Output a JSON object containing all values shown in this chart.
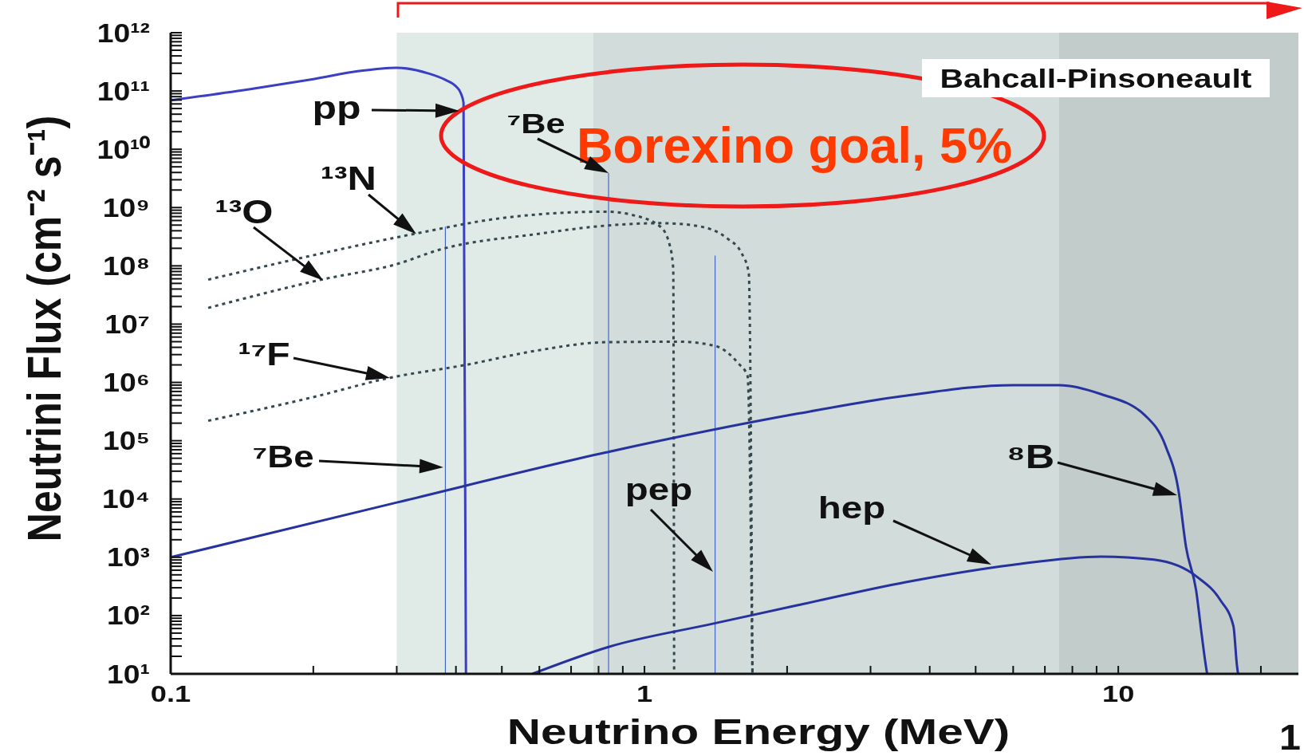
{
  "chart_data": {
    "type": "line",
    "xlabel": "Neutrino Energy (MeV)",
    "ylabel": "Neutrini Flux (cm⁻² s⁻¹)",
    "log": "xy",
    "xlim": [
      0.1,
      24
    ],
    "ylim": [
      10,
      1000000000000.0
    ],
    "xticks": [
      0.1,
      {
        "value": 0.2,
        "label": null
      },
      {
        "value": 0.3,
        "label": null
      },
      {
        "value": 0.4,
        "label": null
      },
      {
        "value": 0.5,
        "label": null
      },
      {
        "value": 0.6,
        "label": null
      },
      {
        "value": 0.7,
        "label": null
      },
      {
        "value": 0.8,
        "label": null
      },
      {
        "value": 0.9,
        "label": null
      },
      1,
      {
        "value": 2,
        "label": null
      },
      {
        "value": 3,
        "label": null
      },
      {
        "value": 4,
        "label": null
      },
      {
        "value": 5,
        "label": null
      },
      {
        "value": 6,
        "label": null
      },
      {
        "value": 7,
        "label": null
      },
      {
        "value": 8,
        "label": null
      },
      {
        "value": 9,
        "label": null
      },
      10,
      {
        "value": 20,
        "label": null
      }
    ],
    "yticks": [
      {
        "value": 10,
        "label": "10¹"
      },
      {
        "value": 20.0,
        "label": null
      },
      {
        "value": 30.0,
        "label": null
      },
      {
        "value": 40.0,
        "label": null
      },
      {
        "value": 50.0,
        "label": null
      },
      {
        "value": 60.0,
        "label": null
      },
      {
        "value": 70.0,
        "label": null
      },
      {
        "value": 80.0,
        "label": null
      },
      {
        "value": 90.0,
        "label": null
      },
      {
        "value": 100.0,
        "label": "10²"
      },
      {
        "value": 200.0,
        "label": null
      },
      {
        "value": 300.0,
        "label": null
      },
      {
        "value": 400.0,
        "label": null
      },
      {
        "value": 500.0,
        "label": null
      },
      {
        "value": 600.0,
        "label": null
      },
      {
        "value": 700.0,
        "label": null
      },
      {
        "value": 800.0,
        "label": null
      },
      {
        "value": 900.0,
        "label": null
      },
      {
        "value": 1000.0,
        "label": "10³"
      },
      {
        "value": 2000.0,
        "label": null
      },
      {
        "value": 3000.0,
        "label": null
      },
      {
        "value": 4000.0,
        "label": null
      },
      {
        "value": 5000.0,
        "label": null
      },
      {
        "value": 6000.0,
        "label": null
      },
      {
        "value": 7000.0,
        "label": null
      },
      {
        "value": 8000.0,
        "label": null
      },
      {
        "value": 9000.0,
        "label": null
      },
      {
        "value": 10000.0,
        "label": "10⁴"
      },
      {
        "value": 20000.0,
        "label": null
      },
      {
        "value": 30000.0,
        "label": null
      },
      {
        "value": 40000.0,
        "label": null
      },
      {
        "value": 50000.0,
        "label": null
      },
      {
        "value": 60000.0,
        "label": null
      },
      {
        "value": 70000.0,
        "label": null
      },
      {
        "value": 80000.0,
        "label": null
      },
      {
        "value": 90000.0,
        "label": null
      },
      {
        "value": 100000.0,
        "label": "10⁵"
      },
      {
        "value": 200000.0,
        "label": null
      },
      {
        "value": 300000.0,
        "label": null
      },
      {
        "value": 400000.0,
        "label": null
      },
      {
        "value": 500000.0,
        "label": null
      },
      {
        "value": 600000.0,
        "label": null
      },
      {
        "value": 700000.0,
        "label": null
      },
      {
        "value": 800000.0,
        "label": null
      },
      {
        "value": 900000.0,
        "label": null
      },
      {
        "value": 1000000.0,
        "label": "10⁶"
      },
      {
        "value": 2000000.0,
        "label": null
      },
      {
        "value": 3000000.0,
        "label": null
      },
      {
        "value": 4000000.0,
        "label": null
      },
      {
        "value": 5000000.0,
        "label": null
      },
      {
        "value": 6000000.0,
        "label": null
      },
      {
        "value": 7000000.0,
        "label": null
      },
      {
        "value": 8000000.0,
        "label": null
      },
      {
        "value": 9000000.0,
        "label": null
      },
      {
        "value": 10000000.0,
        "label": "10⁷"
      },
      {
        "value": 20000000.0,
        "label": null
      },
      {
        "value": 30000000.0,
        "label": null
      },
      {
        "value": 40000000.0,
        "label": null
      },
      {
        "value": 50000000.0,
        "label": null
      },
      {
        "value": 60000000.0,
        "label": null
      },
      {
        "value": 70000000.0,
        "label": null
      },
      {
        "value": 80000000.0,
        "label": null
      },
      {
        "value": 90000000.0,
        "label": null
      },
      {
        "value": 100000000.0,
        "label": "10⁸"
      },
      {
        "value": 200000000.0,
        "label": null
      },
      {
        "value": 300000000.0,
        "label": null
      },
      {
        "value": 400000000.0,
        "label": null
      },
      {
        "value": 500000000.0,
        "label": null
      },
      {
        "value": 600000000.0,
        "label": null
      },
      {
        "value": 700000000.0,
        "label": null
      },
      {
        "value": 800000000.0,
        "label": null
      },
      {
        "value": 900000000.0,
        "label": null
      },
      {
        "value": 1000000000.0,
        "label": "10⁹"
      },
      {
        "value": 2000000000.0,
        "label": null
      },
      {
        "value": 3000000000.0,
        "label": null
      },
      {
        "value": 4000000000.0,
        "label": null
      },
      {
        "value": 5000000000.0,
        "label": null
      },
      {
        "value": 6000000000.0,
        "label": null
      },
      {
        "value": 7000000000.0,
        "label": null
      },
      {
        "value": 8000000000.0,
        "label": null
      },
      {
        "value": 9000000000.0,
        "label": null
      },
      {
        "value": 10000000000.0,
        "label": "10¹⁰"
      },
      {
        "value": 20000000000.0,
        "label": null
      },
      {
        "value": 30000000000.0,
        "label": null
      },
      {
        "value": 40000000000.0,
        "label": null
      },
      {
        "value": 50000000000.0,
        "label": null
      },
      {
        "value": 60000000000.0,
        "label": null
      },
      {
        "value": 70000000000.0,
        "label": null
      },
      {
        "value": 80000000000.0,
        "label": null
      },
      {
        "value": 90000000000.0,
        "label": null
      },
      {
        "value": 100000000000.0,
        "label": "10¹¹"
      },
      {
        "value": 200000000000.0,
        "label": null
      },
      {
        "value": 300000000000.0,
        "label": null
      },
      {
        "value": 400000000000.0,
        "label": null
      },
      {
        "value": 500000000000.0,
        "label": null
      },
      {
        "value": 600000000000.0,
        "label": null
      },
      {
        "value": 700000000000.0,
        "label": null
      },
      {
        "value": 800000000000.0,
        "label": null
      },
      {
        "value": 900000000000.0,
        "label": null
      },
      {
        "value": 1000000000000.0,
        "label": "10¹²"
      }
    ],
    "bands": [
      {
        "axis": "x",
        "from": 0.3,
        "to": 0.78,
        "color": "#e0eae7"
      },
      {
        "axis": "x",
        "from": 0.78,
        "to": 7.5,
        "color": "#d2dcda"
      },
      {
        "axis": "x",
        "from": 7.5,
        "to": 24,
        "color": "#c2cccb"
      }
    ],
    "series": [
      {
        "color": "#3a3fc4",
        "line_style": "solid",
        "x": [
          0.1,
          0.15,
          0.2,
          0.25,
          0.3,
          0.35,
          0.38,
          0.4,
          0.41,
          0.415,
          0.42
        ],
        "values": [
          69000000000.0,
          110000000000.0,
          160000000000.0,
          220000000000.0,
          250000000000.0,
          200000000000.0,
          155000000000.0,
          120000000000.0,
          90000000000.0,
          63000000000.0,
          10
        ]
      },
      {
        "type": "bar",
        "color": "#2c50c2",
        "x": [
          0.38,
          0.84,
          1.41
        ],
        "values": [
          470000000.0,
          3900000000.0,
          150000000.0
        ]
      },
      {
        "color": "#34484f",
        "line_style": "dotted",
        "x": [
          0.12,
          0.21,
          0.33,
          0.5,
          0.83,
          0.94,
          1.08,
          1.13,
          1.15,
          1.155
        ],
        "values": [
          58000000.0,
          166000000.0,
          360000000.0,
          660000000.0,
          850000000.0,
          750000000.0,
          470000000.0,
          230000000.0,
          90000000.0,
          10
        ]
      },
      {
        "color": "#34484f",
        "line_style": "dotted",
        "x": [
          0.12,
          0.21,
          0.3,
          0.37,
          0.59,
          0.83,
          1.08,
          1.28,
          1.5,
          1.6,
          1.66,
          1.69
        ],
        "values": [
          19000000.0,
          59000000.0,
          107000000.0,
          190000000.0,
          350000000.0,
          490000000.0,
          540000000.0,
          490000000.0,
          290000000.0,
          170000000.0,
          76000000.0,
          10
        ]
      },
      {
        "color": "#34484f",
        "line_style": "dotted",
        "x": [
          0.12,
          0.2,
          0.29,
          0.42,
          0.59,
          0.83,
          1.18,
          1.4,
          1.58,
          1.65,
          1.69
        ],
        "values": [
          220000.0,
          560000.0,
          1200000.0,
          2000000.0,
          3500000.0,
          4900000.0,
          5000000.0,
          4300000.0,
          2100000.0,
          1300000.0,
          10
        ]
      },
      {
        "color": "#26329e",
        "line_style": "solid",
        "x": [
          0.1,
          0.3,
          0.83,
          2.1,
          3.5,
          6,
          7.5,
          9.2,
          11.4,
          12.6,
          13.4,
          13.9,
          14.6,
          15,
          15.3,
          15.4
        ],
        "values": [
          1000.0,
          8700.0,
          63000.0,
          290000.0,
          580000.0,
          900000.0,
          900000.0,
          630000.0,
          270000.0,
          79000.0,
          14000.0,
          1500.0,
          270.0,
          47,
          14,
          10
        ]
      },
      {
        "color": "#26329e",
        "line_style": "solid",
        "x": [
          0.58,
          0.84,
          1.4,
          2.1,
          3.56,
          6,
          9.2,
          11.9,
          14.7,
          16.4,
          17.5,
          17.8,
          17.9
        ],
        "values": [
          10,
          29,
          73,
          150,
          375,
          745,
          1030,
          910,
          455,
          187,
          66,
          14,
          10
        ]
      }
    ],
    "annotations": [
      "Bahcall-Pinsoneault",
      "Borexino goal, 5%",
      "pp",
      {
        "text": "¹³N",
        "x": 0.33,
        "y": 350000000.0
      },
      {
        "text": "¹³O",
        "x": 0.21,
        "y": 56000000.0
      },
      "¹⁷F",
      {
        "text": "⁷Be",
        "x": 0.84,
        "y": 3900000000.0
      },
      "⁷Be",
      "pep",
      "hep",
      "⁸B",
      "1"
    ]
  }
}
